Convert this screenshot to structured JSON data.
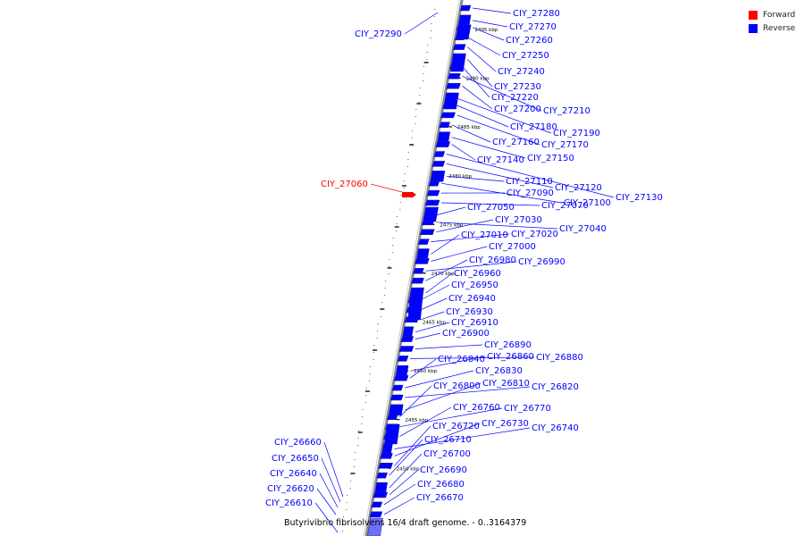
{
  "legend": {
    "forward": {
      "label": "Forward",
      "color": "#ff0000"
    },
    "reverse": {
      "label": "Reverse",
      "color": "#0000ff"
    }
  },
  "genome": {
    "caption": "Butyrivibrio fibrisolvens 16/4 draft genome. - 0..3164379"
  },
  "ticks": [
    {
      "label": "2495 kbp",
      "kbp": 2495
    },
    {
      "label": "2490 kbp",
      "kbp": 2490
    },
    {
      "label": "2485 kbp",
      "kbp": 2485
    },
    {
      "label": "2480 kbp",
      "kbp": 2480
    },
    {
      "label": "2475 kbp",
      "kbp": 2475
    },
    {
      "label": "2470 kbp",
      "kbp": 2470
    },
    {
      "label": "2465 kbp",
      "kbp": 2465
    },
    {
      "label": "2460 kbp",
      "kbp": 2460
    },
    {
      "label": "2455 kbp",
      "kbp": 2455
    },
    {
      "label": "2450 kbp",
      "kbp": 2450
    }
  ],
  "right_genes": [
    "CIY_27280",
    "CIY_27270",
    "CIY_27260",
    "CIY_27250",
    "CIY_27240",
    "CIY_27230",
    "CIY_27220",
    "CIY_27210",
    "CIY_27200",
    "CIY_27190",
    "CIY_27180",
    "CIY_27170",
    "CIY_27160",
    "CIY_27150",
    "CIY_27140",
    "CIY_27130",
    "CIY_27120",
    "CIY_27110",
    "CIY_27100",
    "CIY_27090",
    "CIY_27070",
    "CIY_27050",
    "CIY_27040",
    "CIY_27030",
    "CIY_27020",
    "CIY_27010",
    "CIY_27000",
    "CIY_26990",
    "CIY_26980",
    "CIY_26960",
    "CIY_26950",
    "CIY_26940",
    "CIY_26930",
    "CIY_26910",
    "CIY_26900",
    "CIY_26890",
    "CIY_26880",
    "CIY_26860",
    "CIY_26840",
    "CIY_26830",
    "CIY_26820",
    "CIY_26810",
    "CIY_26800",
    "CIY_26770",
    "CIY_26760",
    "CIY_26740",
    "CIY_26730",
    "CIY_26720",
    "CIY_26710",
    "CIY_26700",
    "CIY_26690",
    "CIY_26680",
    "CIY_26670"
  ],
  "left_genes": [
    {
      "label": "CIY_27290",
      "strand": "reverse"
    },
    {
      "label": "CIY_27060",
      "strand": "forward"
    },
    {
      "label": "CIY_26660",
      "strand": "reverse"
    },
    {
      "label": "CIY_26650",
      "strand": "reverse"
    },
    {
      "label": "CIY_26640",
      "strand": "reverse"
    },
    {
      "label": "CIY_26620",
      "strand": "reverse"
    },
    {
      "label": "CIY_26610",
      "strand": "reverse"
    }
  ],
  "colors": {
    "backbone": "#808080",
    "forward": "#ff0000",
    "reverse": "#0000ff",
    "reverse_light": "#6f6fff",
    "tick": "#000000"
  }
}
